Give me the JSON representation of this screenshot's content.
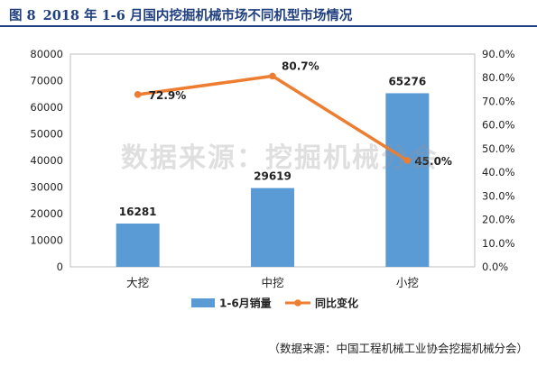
{
  "figure": {
    "label": "图 8",
    "title": "2018 年 1-6 月国内挖掘机械市场不同机型市场情况"
  },
  "watermark": "数据来源：挖掘机械分会",
  "source": "（数据来源：中国工程机械工业协会挖掘机械分会）",
  "colors": {
    "bar": "#5b9bd5",
    "line": "#ed7d31",
    "title": "#1f3f7f",
    "axis": "#7f7f7f"
  },
  "chart_data": {
    "type": "bar",
    "categories": [
      "大挖",
      "中挖",
      "小挖"
    ],
    "series": [
      {
        "name": "1-6月销量",
        "type": "bar",
        "axis": "left",
        "values": [
          16281,
          29619,
          65276
        ],
        "labels": [
          "16281",
          "29619",
          "65276"
        ]
      },
      {
        "name": "同比变化",
        "type": "line",
        "axis": "right",
        "values": [
          72.9,
          80.7,
          45.0
        ],
        "labels": [
          "72.9%",
          "80.7%",
          "45.0%"
        ]
      }
    ],
    "y_left": {
      "ylim": [
        0,
        80000
      ],
      "ticks": [
        "0",
        "10000",
        "20000",
        "30000",
        "40000",
        "50000",
        "60000",
        "70000",
        "80000"
      ]
    },
    "y_right": {
      "ylim": [
        0,
        90
      ],
      "ticks": [
        "0.0%",
        "10.0%",
        "20.0%",
        "30.0%",
        "40.0%",
        "50.0%",
        "60.0%",
        "70.0%",
        "80.0%",
        "90.0%"
      ]
    },
    "legend": "bottom-center",
    "grid": false
  }
}
